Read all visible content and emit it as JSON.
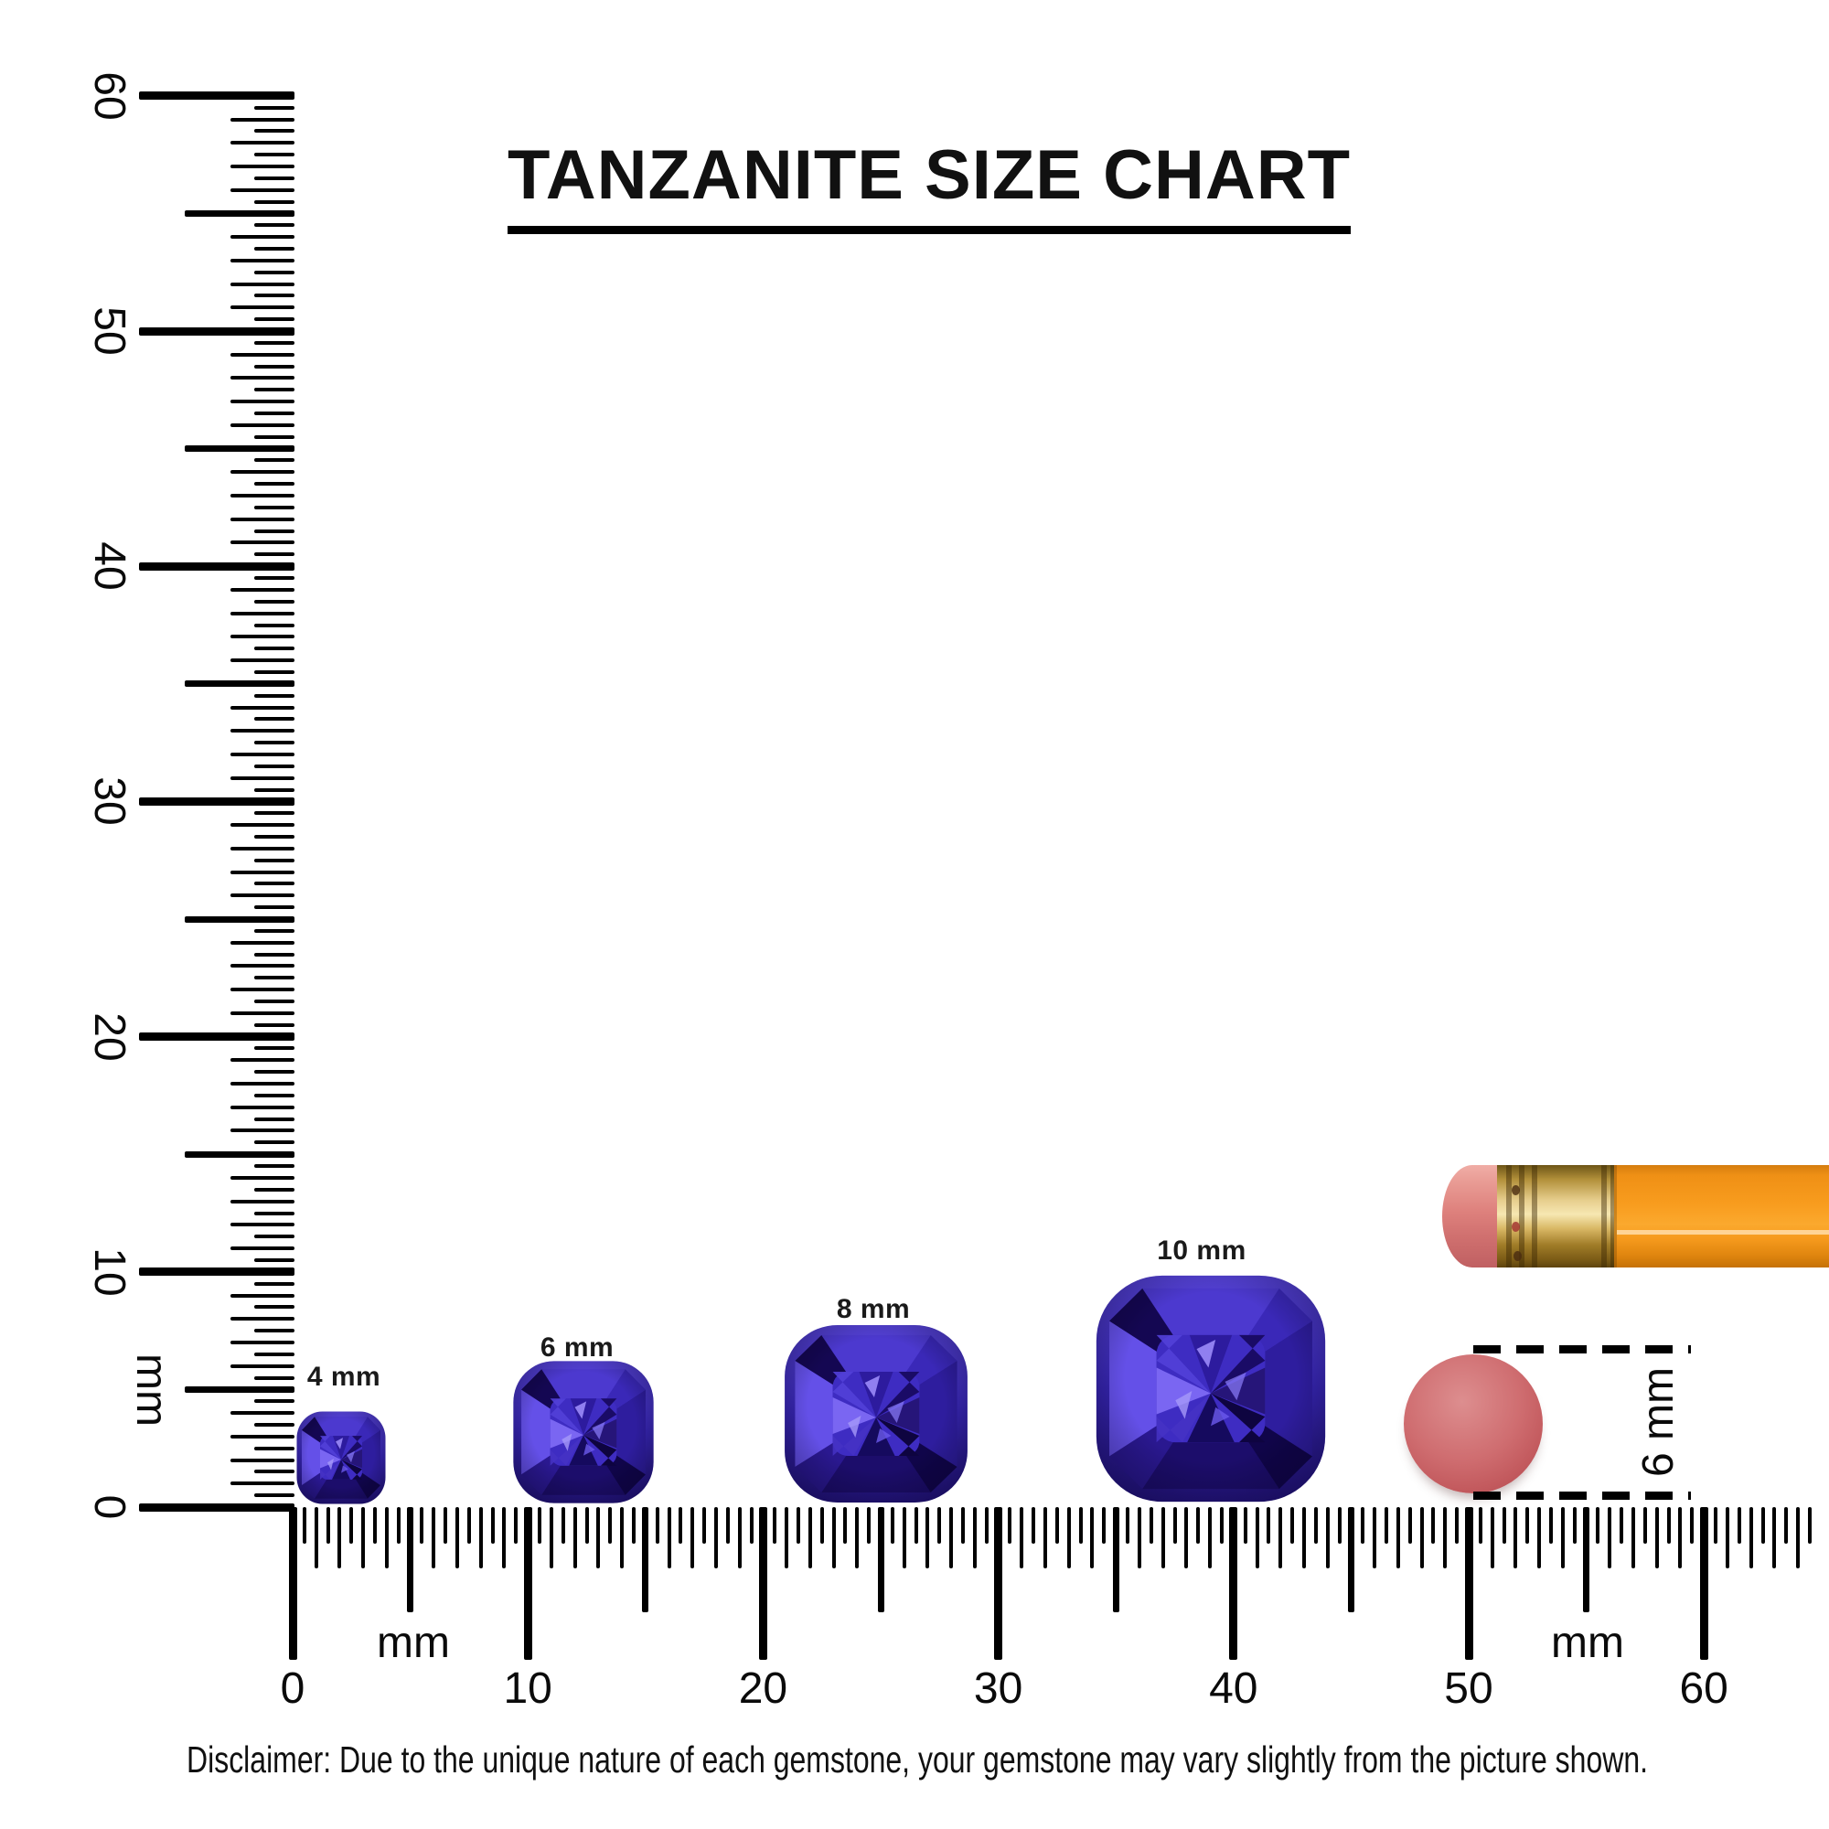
{
  "title": "TANZANITE SIZE CHART",
  "rulers": {
    "unit_label": "mm",
    "vertical": {
      "labels": [
        "0",
        "10",
        "20",
        "30",
        "40",
        "50",
        "60"
      ]
    },
    "horizontal": {
      "labels": [
        "0",
        "10",
        "20",
        "30",
        "40",
        "50",
        "60"
      ]
    }
  },
  "gems": [
    {
      "label": "4 mm",
      "size_mm": 4
    },
    {
      "label": "6 mm",
      "size_mm": 6
    },
    {
      "label": "8 mm",
      "size_mm": 8
    },
    {
      "label": "10 mm",
      "size_mm": 10
    }
  ],
  "eraser_reference": {
    "diameter_label": "6 mm"
  },
  "disclaimer": "Disclaimer: Due to the unique nature of each gemstone, your gemstone may vary slightly from the picture shown.",
  "colors": {
    "ink": "#000000",
    "background": "#ffffff",
    "gem_primary": "#3e2cc2",
    "gem_light": "#7a66f2",
    "gem_dark": "#150a5e",
    "pencil_body": "#f89c1e",
    "pencil_ferrule": "#d9b865",
    "pencil_eraser": "#de817d",
    "eraser_face": "#c35a5e"
  }
}
